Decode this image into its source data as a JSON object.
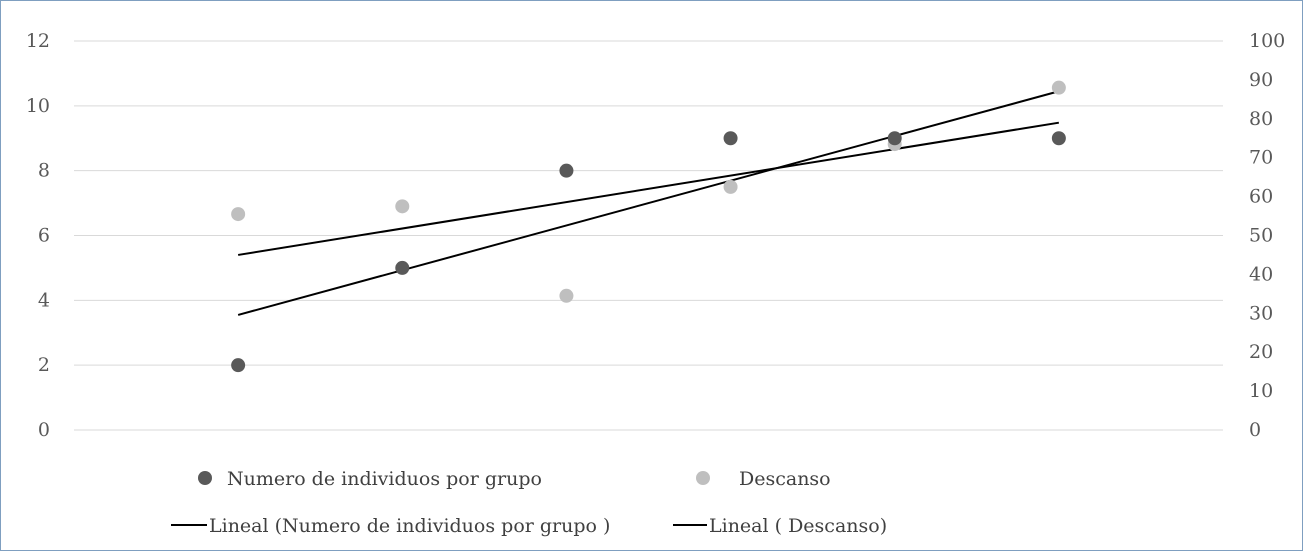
{
  "chart_data": {
    "type": "scatter",
    "x": [
      1,
      2,
      3,
      4,
      5,
      6
    ],
    "x_range": [
      0,
      7
    ],
    "y_left": {
      "ticks": [
        "0",
        "2",
        "4",
        "6",
        "8",
        "10",
        "12"
      ],
      "ylim": [
        0,
        12
      ]
    },
    "y_right": {
      "ticks": [
        "0",
        "10",
        "20",
        "30",
        "40",
        "50",
        "60",
        "70",
        "80",
        "90",
        "100"
      ],
      "ylim": [
        0,
        100
      ]
    },
    "grid": true,
    "legend_position": "bottom",
    "series": [
      {
        "name": "Numero de individuos por grupo",
        "axis": "left",
        "color": "#595959",
        "values": [
          2,
          5,
          8,
          9,
          9,
          9
        ]
      },
      {
        "name": "Descanso",
        "axis": "right",
        "color": "#bfbfbf",
        "values": [
          55.5,
          57.5,
          34.5,
          62.5,
          73.5,
          88
        ]
      }
    ],
    "trendlines": [
      {
        "name": "Lineal (Numero de individuos por grupo )",
        "axis": "left",
        "color": "#000000",
        "start": [
          1,
          3.55
        ],
        "end": [
          6,
          10.45
        ]
      },
      {
        "name": "Lineal ( Descanso)",
        "axis": "right",
        "color": "#000000",
        "start": [
          1,
          45
        ],
        "end": [
          6,
          79
        ]
      }
    ]
  }
}
